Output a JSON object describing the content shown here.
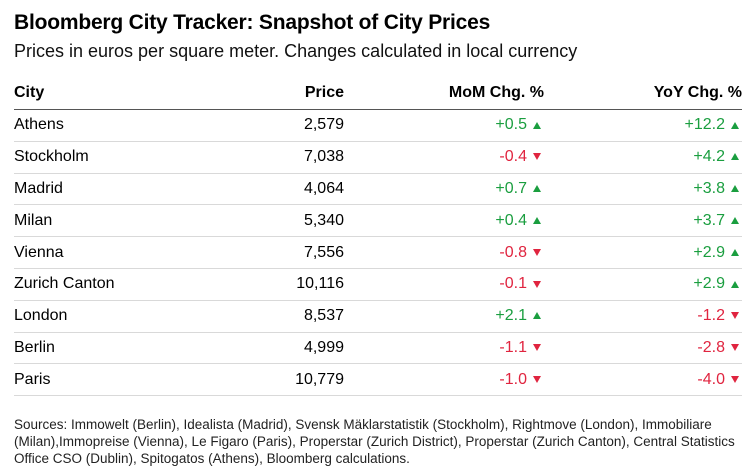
{
  "title": "Bloomberg City Tracker: Snapshot of City Prices",
  "subtitle": "Prices in euros per square meter. Changes calculated in local currency",
  "chart_data": {
    "type": "table",
    "columns": [
      "City",
      "Price",
      "MoM Chg. %",
      "YoY Chg. %"
    ],
    "rows": [
      {
        "city": "Athens",
        "price": "2,579",
        "mom": "+0.5",
        "mom_dir": "up",
        "yoy": "+12.2",
        "yoy_dir": "up"
      },
      {
        "city": "Stockholm",
        "price": "7,038",
        "mom": "-0.4",
        "mom_dir": "down",
        "yoy": "+4.2",
        "yoy_dir": "up"
      },
      {
        "city": "Madrid",
        "price": "4,064",
        "mom": "+0.7",
        "mom_dir": "up",
        "yoy": "+3.8",
        "yoy_dir": "up"
      },
      {
        "city": "Milan",
        "price": "5,340",
        "mom": "+0.4",
        "mom_dir": "up",
        "yoy": "+3.7",
        "yoy_dir": "up"
      },
      {
        "city": "Vienna",
        "price": "7,556",
        "mom": "-0.8",
        "mom_dir": "down",
        "yoy": "+2.9",
        "yoy_dir": "up"
      },
      {
        "city": "Zurich Canton",
        "price": "10,116",
        "mom": "-0.1",
        "mom_dir": "down",
        "yoy": "+2.9",
        "yoy_dir": "up"
      },
      {
        "city": "London",
        "price": "8,537",
        "mom": "+2.1",
        "mom_dir": "up",
        "yoy": "-1.2",
        "yoy_dir": "down"
      },
      {
        "city": "Berlin",
        "price": "4,999",
        "mom": "-1.1",
        "mom_dir": "down",
        "yoy": "-2.8",
        "yoy_dir": "down"
      },
      {
        "city": "Paris",
        "price": "10,779",
        "mom": "-1.0",
        "mom_dir": "down",
        "yoy": "-4.0",
        "yoy_dir": "down"
      }
    ]
  },
  "colors": {
    "positive": "#1a9e3f",
    "negative": "#e0243f"
  },
  "source": "Sources: Immowelt (Berlin), Idealista (Madrid), Svensk Mäklarstatistik (Stockholm), Rightmove (London), Immobiliare (Milan),Immopreise (Vienna), Le Figaro (Paris), Properstar (Zurich District), Properstar (Zurich Canton), Central Statistics Office CSO (Dublin), Spitogatos (Athens), Bloomberg calculations."
}
